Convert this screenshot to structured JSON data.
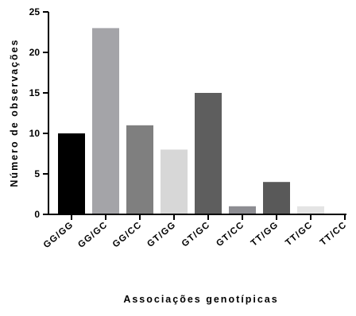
{
  "chart_data": {
    "type": "bar",
    "xlabel": "Associações genotípicas",
    "ylabel": "Número de observações",
    "ylim": [
      0,
      25
    ],
    "yticks": [
      0,
      5,
      10,
      15,
      20,
      25
    ],
    "grid": false,
    "categories": [
      "GG/GG",
      "GG/GC",
      "GG/CC",
      "GT/GG",
      "GT/GC",
      "GT/CC",
      "TT/GG",
      "TT/GC",
      "TT/CC"
    ],
    "values": [
      10,
      23,
      11,
      8,
      15,
      1,
      4,
      1,
      0
    ],
    "colors": [
      "#000000",
      "#a4a4a8",
      "#7f7f7f",
      "#d7d7d7",
      "#5e5e5e",
      "#8d8d92",
      "#595959",
      "#e4e4e4",
      "#ffffff"
    ]
  }
}
